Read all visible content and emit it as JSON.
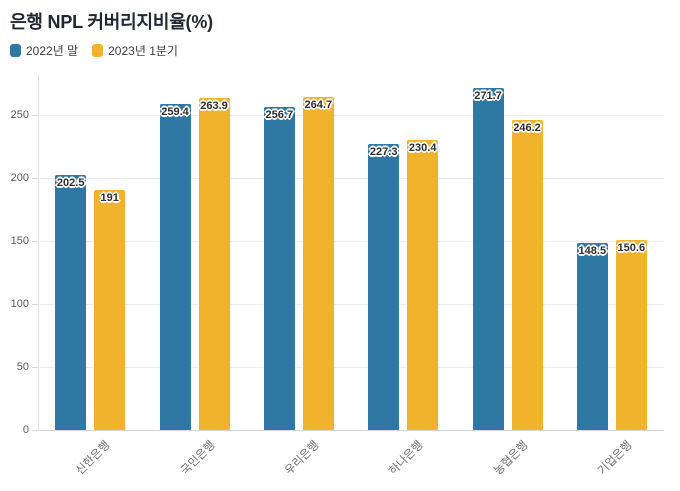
{
  "title": "은행 NPL 커버리지비율(%)",
  "chart_data": {
    "type": "bar",
    "title": "은행 NPL 커버리지비율(%)",
    "categories": [
      "신한은행",
      "국민은행",
      "우리은행",
      "하나은행",
      "농협은행",
      "기업은행"
    ],
    "series": [
      {
        "name": "2022년 말",
        "color": "#3078A4",
        "values": [
          202.5,
          259.4,
          256.7,
          227.3,
          271.7,
          148.5
        ]
      },
      {
        "name": "2023년 1분기",
        "color": "#F0B32B",
        "values": [
          191,
          263.9,
          264.7,
          230.4,
          246.2,
          150.6
        ]
      }
    ],
    "xlabel": "",
    "ylabel": "",
    "ylim": [
      0,
      282
    ],
    "yticks": [
      0,
      50,
      100,
      150,
      200,
      250
    ],
    "grid": true,
    "legend_position": "top-left",
    "value_labels": true
  },
  "colors": {
    "series1": "#3078A4",
    "series2": "#F0B32B",
    "title_text": "#222831",
    "grid": "#ededed",
    "axis": "#d7d7d7",
    "tick_text": "#5a5a5a",
    "category_text": "#6e6e6e",
    "value_label_text": "#2d2d2d",
    "background": "#ffffff"
  }
}
